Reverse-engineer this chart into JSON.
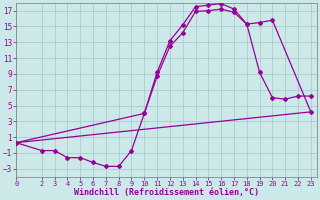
{
  "background_color": "#cce8e8",
  "grid_color": "#aacccc",
  "line_color": "#990099",
  "marker_color": "#990099",
  "xlabel": "Windchill (Refroidissement éolien,°C)",
  "ytick_vals": [
    -3,
    -1,
    1,
    3,
    5,
    7,
    9,
    11,
    13,
    15,
    17
  ],
  "xtick_vals": [
    0,
    2,
    3,
    4,
    5,
    6,
    7,
    8,
    9,
    10,
    11,
    12,
    13,
    14,
    15,
    16,
    17,
    18,
    19,
    20,
    21,
    22,
    23
  ],
  "xlim": [
    0,
    23.5
  ],
  "ylim": [
    -4,
    18
  ],
  "curve1_x": [
    0,
    2,
    3,
    4,
    5,
    6,
    7,
    8,
    9,
    10,
    11,
    12,
    13,
    14,
    15,
    16,
    17,
    18,
    19,
    20,
    21,
    22,
    23
  ],
  "curve1_y": [
    0.3,
    -0.7,
    -0.7,
    -1.6,
    -1.6,
    -2.2,
    -2.7,
    -2.7,
    -0.7,
    4.0,
    9.2,
    13.2,
    15.2,
    17.5,
    17.7,
    17.9,
    17.2,
    15.3,
    9.2,
    6.0,
    5.8,
    6.2,
    6.2
  ],
  "curve2_x": [
    0,
    10,
    11,
    12,
    13,
    14,
    15,
    16,
    17,
    18,
    19,
    20,
    23
  ],
  "curve2_y": [
    0.3,
    4.0,
    8.7,
    12.5,
    14.2,
    16.9,
    17.0,
    17.2,
    16.8,
    15.3,
    15.5,
    15.8,
    4.2
  ],
  "curve3_x": [
    0,
    23
  ],
  "curve3_y": [
    0.3,
    4.2
  ]
}
